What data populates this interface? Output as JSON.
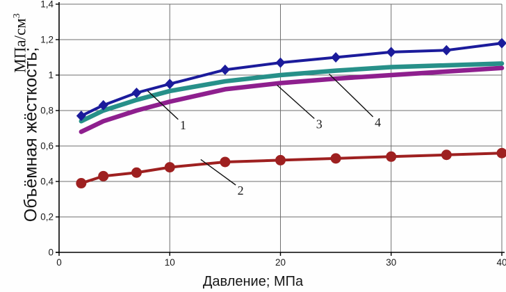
{
  "figure": {
    "y_axis_unit_base": "МПа/см",
    "y_axis_unit_sup": "3",
    "y_axis_title": "Объёмная жёсткость;",
    "x_axis_title": "Давление; МПа"
  },
  "chart_data": {
    "type": "line",
    "title": "",
    "xlabel": "Давление; МПа",
    "ylabel": "Объёмная жёсткость; МПа/см3",
    "xlim": [
      0,
      40
    ],
    "ylim": [
      0,
      1.4
    ],
    "grid": true,
    "x_ticks": [
      0,
      10,
      20,
      30,
      40
    ],
    "x_tick_labels": [
      "0",
      "10",
      "20",
      "30",
      "40"
    ],
    "y_ticks": [
      0,
      0.2,
      0.4,
      0.6,
      0.8,
      1.0,
      1.2,
      1.4
    ],
    "y_tick_labels": [
      "0",
      "0,2",
      "0,4",
      "0,6",
      "0,8",
      "1",
      "1,2",
      "1,4"
    ],
    "x": [
      2,
      4,
      7,
      10,
      15,
      20,
      25,
      30,
      35,
      40
    ],
    "series": [
      {
        "name": "1",
        "color": "#1b1b9b",
        "marker": "diamond",
        "line_width": 4,
        "values": [
          0.77,
          0.83,
          0.9,
          0.95,
          1.03,
          1.07,
          1.1,
          1.13,
          1.14,
          1.18
        ]
      },
      {
        "name": "2",
        "color": "#9e2020",
        "marker": "circle",
        "line_width": 4,
        "values": [
          0.39,
          0.43,
          0.45,
          0.48,
          0.51,
          0.52,
          0.53,
          0.54,
          0.55,
          0.56
        ]
      },
      {
        "name": "3",
        "color": "#8e1f8e",
        "marker": "none",
        "line_width": 6.5,
        "values": [
          0.68,
          0.74,
          0.8,
          0.85,
          0.92,
          0.955,
          0.98,
          1.0,
          1.02,
          1.04
        ]
      },
      {
        "name": "4",
        "color": "#279089",
        "marker": "none",
        "line_width": 6.5,
        "values": [
          0.74,
          0.8,
          0.86,
          0.91,
          0.965,
          1.0,
          1.025,
          1.045,
          1.055,
          1.065
        ]
      }
    ],
    "draw_order": [
      "3",
      "4",
      "1",
      "2"
    ],
    "annotations": [
      {
        "label": "1",
        "tip": [
          8.0,
          0.911
        ],
        "pos": [
          11.2,
          0.695
        ]
      },
      {
        "label": "2",
        "tip": [
          12.8,
          0.524
        ],
        "pos": [
          16.4,
          0.325
        ]
      },
      {
        "label": "3",
        "tip": [
          19.7,
          0.943
        ],
        "pos": [
          23.5,
          0.7
        ]
      },
      {
        "label": "4",
        "tip": [
          24.4,
          1.006
        ],
        "pos": [
          28.8,
          0.71
        ]
      }
    ],
    "legend_position": "none"
  }
}
